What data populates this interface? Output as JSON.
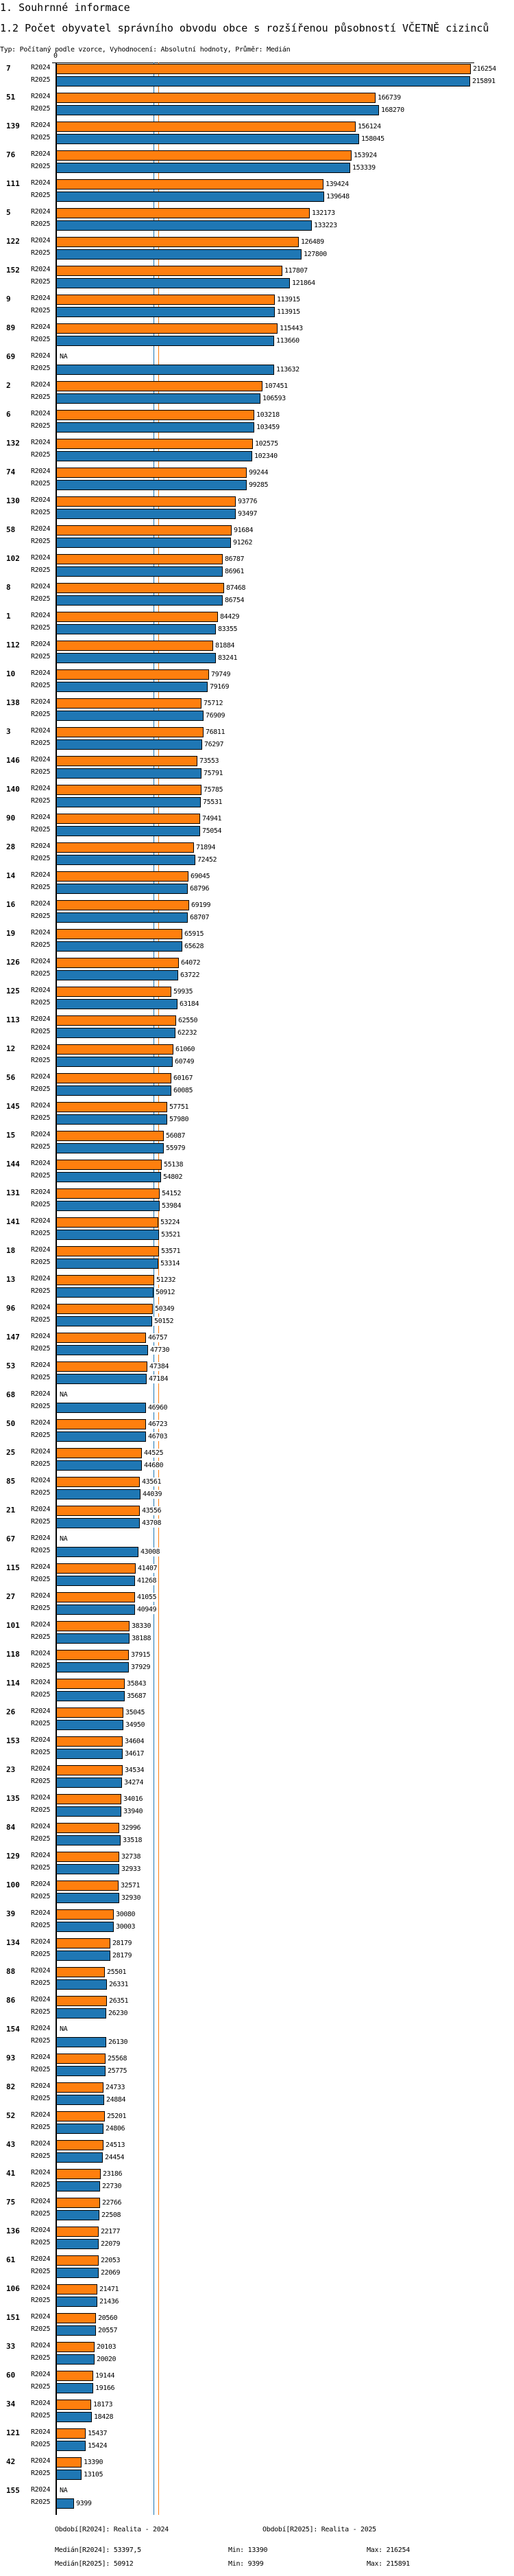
{
  "header": {
    "section": "1. Souhrnné informace",
    "title": "1.2 Počet obyvatel správního obvodu obce s rozšířenou působností VČETNĚ cizinců",
    "subtitle": "Typ: Počítaný podle vzorce, Vyhodnocení: Absolutní hodnoty, Průměr: Medián"
  },
  "chart_data": {
    "type": "bar",
    "orientation": "horizontal",
    "title": "1.2 Počet obyvatel správního obvodu obce s rozšířenou působností VČETNĚ cizinců",
    "axis_zero_label": "0",
    "xlim": [
      0,
      216254
    ],
    "series_names": [
      "R2024",
      "R2025"
    ],
    "colors": {
      "R2024": "#ff7f0e",
      "R2025": "#1f77b4"
    },
    "medians": {
      "R2024": 53397.5,
      "R2025": 50912
    },
    "na_label": "NA",
    "groups": [
      [
        "7",
        216254,
        215891
      ],
      [
        "51",
        166739,
        168270
      ],
      [
        "139",
        156124,
        158045
      ],
      [
        "76",
        153924,
        153339
      ],
      [
        "111",
        139424,
        139648
      ],
      [
        "5",
        132173,
        133223
      ],
      [
        "122",
        126489,
        127800
      ],
      [
        "152",
        117807,
        121864
      ],
      [
        "9",
        113915,
        113915
      ],
      [
        "89",
        115443,
        113660
      ],
      [
        "69",
        null,
        113632
      ],
      [
        "2",
        107451,
        106593
      ],
      [
        "6",
        103218,
        103459
      ],
      [
        "132",
        102575,
        102340
      ],
      [
        "74",
        99244,
        99285
      ],
      [
        "130",
        93776,
        93497
      ],
      [
        "58",
        91684,
        91262
      ],
      [
        "102",
        86787,
        86961
      ],
      [
        "8",
        87468,
        86754
      ],
      [
        "1",
        84429,
        83355
      ],
      [
        "112",
        81884,
        83241
      ],
      [
        "10",
        79749,
        79169
      ],
      [
        "138",
        75712,
        76909
      ],
      [
        "3",
        76811,
        76297
      ],
      [
        "146",
        73553,
        75791
      ],
      [
        "140",
        75785,
        75531
      ],
      [
        "90",
        74941,
        75054
      ],
      [
        "28",
        71894,
        72452
      ],
      [
        "14",
        69045,
        68796
      ],
      [
        "16",
        69199,
        68707
      ],
      [
        "19",
        65915,
        65628
      ],
      [
        "126",
        64072,
        63722
      ],
      [
        "125",
        59935,
        63184
      ],
      [
        "113",
        62550,
        62232
      ],
      [
        "12",
        61060,
        60749
      ],
      [
        "56",
        60167,
        60085
      ],
      [
        "145",
        57751,
        57980
      ],
      [
        "15",
        56087,
        55979
      ],
      [
        "144",
        55138,
        54802
      ],
      [
        "131",
        54152,
        53984
      ],
      [
        "141",
        53224,
        53521
      ],
      [
        "18",
        53571,
        53314
      ],
      [
        "13",
        51232,
        50912
      ],
      [
        "96",
        50349,
        50152
      ],
      [
        "147",
        46757,
        47730
      ],
      [
        "53",
        47384,
        47184
      ],
      [
        "68",
        null,
        46960
      ],
      [
        "50",
        46723,
        46703
      ],
      [
        "25",
        44525,
        44680
      ],
      [
        "85",
        43561,
        44039
      ],
      [
        "21",
        43556,
        43708
      ],
      [
        "67",
        null,
        43008
      ],
      [
        "115",
        41407,
        41268
      ],
      [
        "27",
        41055,
        40949
      ],
      [
        "101",
        38330,
        38188
      ],
      [
        "118",
        37915,
        37929
      ],
      [
        "114",
        35843,
        35687
      ],
      [
        "26",
        35045,
        34950
      ],
      [
        "153",
        34604,
        34617
      ],
      [
        "23",
        34534,
        34274
      ],
      [
        "135",
        34016,
        33940
      ],
      [
        "84",
        32996,
        33518
      ],
      [
        "129",
        32738,
        32933
      ],
      [
        "100",
        32571,
        32930
      ],
      [
        "39",
        30080,
        30003
      ],
      [
        "134",
        28179,
        28179
      ],
      [
        "88",
        25501,
        26331
      ],
      [
        "86",
        26351,
        26230
      ],
      [
        "154",
        null,
        26130
      ],
      [
        "93",
        25568,
        25775
      ],
      [
        "82",
        24733,
        24884
      ],
      [
        "52",
        25201,
        24806
      ],
      [
        "43",
        24513,
        24454
      ],
      [
        "41",
        23186,
        22730
      ],
      [
        "75",
        22766,
        22508
      ],
      [
        "136",
        22177,
        22079
      ],
      [
        "61",
        22053,
        22069
      ],
      [
        "106",
        21471,
        21436
      ],
      [
        "151",
        20560,
        20557
      ],
      [
        "33",
        20103,
        20020
      ],
      [
        "60",
        19144,
        19166
      ],
      [
        "34",
        18173,
        18428
      ],
      [
        "121",
        15437,
        15424
      ],
      [
        "42",
        13390,
        13105
      ],
      [
        "155",
        null,
        9399
      ]
    ]
  },
  "footer": {
    "period_2024": "Období[R2024]: Realita - 2024",
    "period_2025": "Období[R2025]: Realita - 2025",
    "median_2024": "Medián[R2024]: 53397,5",
    "min_2024": "Min: 13390",
    "max_2024": "Max: 216254",
    "median_2025": "Medián[R2025]: 50912",
    "min_2025": "Min: 9399",
    "max_2025": "Max: 215891"
  }
}
